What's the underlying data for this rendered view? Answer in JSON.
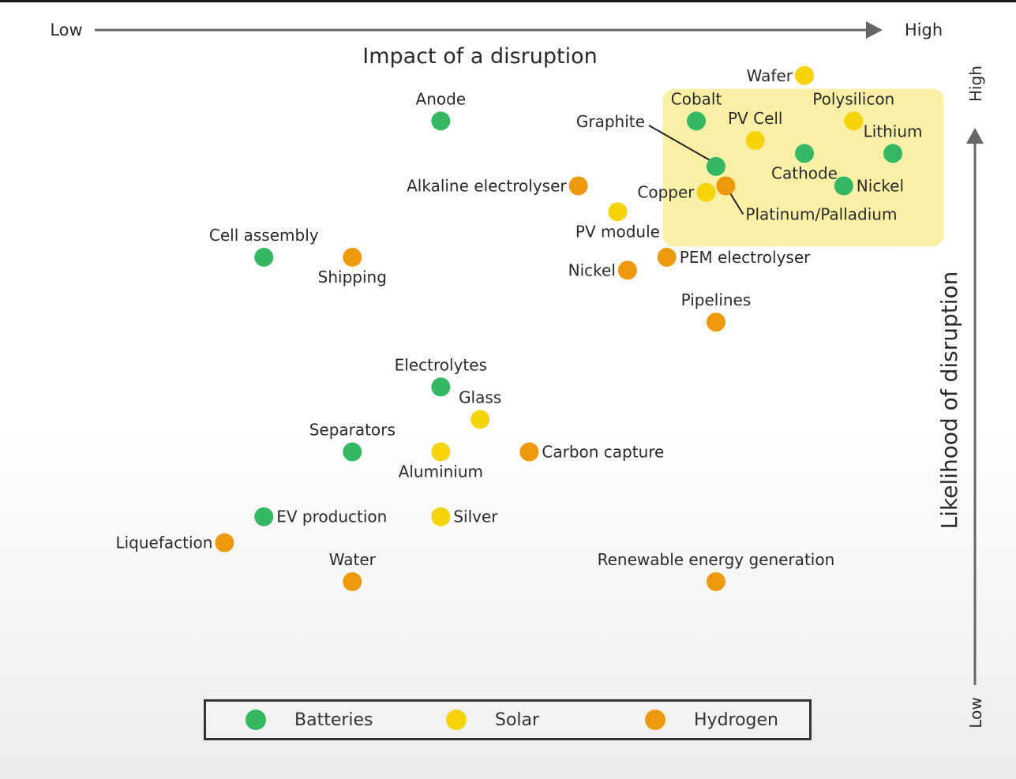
{
  "colors": {
    "Batteries": "#35b864",
    "Solar": "#f5d40a",
    "Hydrogen": "#ec9a0c",
    "highlight": "#fbf0a6"
  },
  "chart_data": {
    "type": "scatter",
    "title": "Impact of a disruption",
    "x_axis": {
      "label": "Impact of a disruption",
      "low_label": "Low",
      "high_label": "High"
    },
    "y_axis": {
      "label": "Likelihood of disruption",
      "low_label": "Low",
      "high_label": "High"
    },
    "xlim": [
      0,
      100
    ],
    "ylim": [
      0,
      100
    ],
    "highlight_region": {
      "x": [
        66,
        92
      ],
      "y": [
        80,
        98
      ]
    },
    "legend": [
      "Batteries",
      "Solar",
      "Hydrogen"
    ],
    "points": [
      {
        "label": "Anode",
        "category": "Batteries",
        "x": 43,
        "y": 94,
        "label_pos": "above"
      },
      {
        "label": "Cobalt",
        "category": "Batteries",
        "x": 69,
        "y": 94,
        "label_pos": "above"
      },
      {
        "label": "Wafer",
        "category": "Solar",
        "x": 80,
        "y": 101,
        "label_pos": "left"
      },
      {
        "label": "Polysilicon",
        "category": "Solar",
        "x": 85,
        "y": 94,
        "label_pos": "above"
      },
      {
        "label": "PV Cell",
        "category": "Solar",
        "x": 75,
        "y": 91,
        "label_pos": "above"
      },
      {
        "label": "Lithium",
        "category": "Batteries",
        "x": 89,
        "y": 89,
        "label_pos": "above"
      },
      {
        "label": "Cathode",
        "category": "Batteries",
        "x": 80,
        "y": 89,
        "label_pos": "below"
      },
      {
        "label": "Graphite",
        "category": "Batteries",
        "x": 71,
        "y": 87,
        "label_pos": "leader"
      },
      {
        "label": "Nickel",
        "category": "Batteries",
        "x": 84,
        "y": 84,
        "label_pos": "right"
      },
      {
        "label": "Copper",
        "category": "Solar",
        "x": 70,
        "y": 83,
        "label_pos": "left"
      },
      {
        "label": "Platinum/Palladium",
        "category": "Hydrogen",
        "x": 72,
        "y": 84,
        "label_pos": "leader"
      },
      {
        "label": "Alkaline electrolyser",
        "category": "Hydrogen",
        "x": 57,
        "y": 84,
        "label_pos": "left"
      },
      {
        "label": "PV module",
        "category": "Solar",
        "x": 61,
        "y": 80,
        "label_pos": "below"
      },
      {
        "label": "Cell assembly",
        "category": "Batteries",
        "x": 25,
        "y": 73,
        "label_pos": "above"
      },
      {
        "label": "Shipping",
        "category": "Hydrogen",
        "x": 34,
        "y": 73,
        "label_pos": "below"
      },
      {
        "label": "PEM electrolyser",
        "category": "Hydrogen",
        "x": 66,
        "y": 73,
        "label_pos": "right"
      },
      {
        "label": "Nickel",
        "category": "Hydrogen",
        "x": 62,
        "y": 71,
        "label_pos": "left"
      },
      {
        "label": "Pipelines",
        "category": "Hydrogen",
        "x": 71,
        "y": 63,
        "label_pos": "above"
      },
      {
        "label": "Electrolytes",
        "category": "Batteries",
        "x": 43,
        "y": 53,
        "label_pos": "above"
      },
      {
        "label": "Glass",
        "category": "Solar",
        "x": 47,
        "y": 48,
        "label_pos": "above"
      },
      {
        "label": "Separators",
        "category": "Batteries",
        "x": 34,
        "y": 43,
        "label_pos": "above"
      },
      {
        "label": "Aluminium",
        "category": "Solar",
        "x": 43,
        "y": 43,
        "label_pos": "below"
      },
      {
        "label": "Carbon capture",
        "category": "Hydrogen",
        "x": 52,
        "y": 43,
        "label_pos": "right"
      },
      {
        "label": "EV production",
        "category": "Batteries",
        "x": 25,
        "y": 33,
        "label_pos": "right"
      },
      {
        "label": "Silver",
        "category": "Solar",
        "x": 43,
        "y": 33,
        "label_pos": "right"
      },
      {
        "label": "Liquefaction",
        "category": "Hydrogen",
        "x": 21,
        "y": 29,
        "label_pos": "left"
      },
      {
        "label": "Water",
        "category": "Hydrogen",
        "x": 34,
        "y": 23,
        "label_pos": "above"
      },
      {
        "label": "Renewable energy generation",
        "category": "Hydrogen",
        "x": 71,
        "y": 23,
        "label_pos": "above"
      }
    ]
  }
}
